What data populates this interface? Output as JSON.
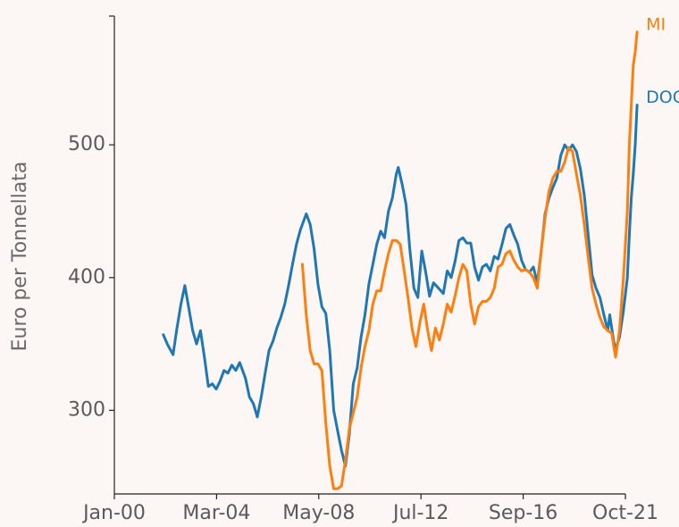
{
  "chart_data": {
    "type": "line",
    "title": "",
    "xlabel": "",
    "ylabel": "Euro per Tonnellata",
    "x_ticks": [
      "Jan-00",
      "Mar-04",
      "May-08",
      "Jul-12",
      "Sep-16",
      "Oct-21"
    ],
    "x_range": [
      "2000-01",
      "2021-10"
    ],
    "y_ticks": [
      300,
      400,
      500
    ],
    "ylim": [
      237,
      597
    ],
    "grid": false,
    "legend": "inline labels at line ends",
    "colors": {
      "MI": "#ff7f0e",
      "DOG": "#1f77b4"
    },
    "series": [
      {
        "name": "DOG",
        "color": "#1f77b4",
        "points": [
          [
            "2002-02",
            357
          ],
          [
            "2002-04",
            350
          ],
          [
            "2002-07",
            342
          ],
          [
            "2002-09",
            362
          ],
          [
            "2002-11",
            380
          ],
          [
            "2003-01",
            394
          ],
          [
            "2003-03",
            377
          ],
          [
            "2003-05",
            360
          ],
          [
            "2003-07",
            350
          ],
          [
            "2003-09",
            360
          ],
          [
            "2003-11",
            340
          ],
          [
            "2004-01",
            318
          ],
          [
            "2004-03",
            320
          ],
          [
            "2004-05",
            316
          ],
          [
            "2004-07",
            322
          ],
          [
            "2004-09",
            330
          ],
          [
            "2004-11",
            328
          ],
          [
            "2005-01",
            334
          ],
          [
            "2005-03",
            330
          ],
          [
            "2005-05",
            336
          ],
          [
            "2005-08",
            324
          ],
          [
            "2005-10",
            310
          ],
          [
            "2005-12",
            305
          ],
          [
            "2006-02",
            295
          ],
          [
            "2006-04",
            310
          ],
          [
            "2006-06",
            328
          ],
          [
            "2006-08",
            345
          ],
          [
            "2006-10",
            352
          ],
          [
            "2006-12",
            362
          ],
          [
            "2007-02",
            370
          ],
          [
            "2007-04",
            380
          ],
          [
            "2007-06",
            394
          ],
          [
            "2007-08",
            410
          ],
          [
            "2007-10",
            425
          ],
          [
            "2007-12",
            436
          ],
          [
            "2008-02",
            444
          ],
          [
            "2008-03",
            448
          ],
          [
            "2008-05",
            440
          ],
          [
            "2008-07",
            422
          ],
          [
            "2008-09",
            395
          ],
          [
            "2008-11",
            378
          ],
          [
            "2009-01",
            373
          ],
          [
            "2009-03",
            345
          ],
          [
            "2009-05",
            300
          ],
          [
            "2009-07",
            285
          ],
          [
            "2009-09",
            270
          ],
          [
            "2009-11",
            258
          ],
          [
            "2010-01",
            282
          ],
          [
            "2010-03",
            320
          ],
          [
            "2010-05",
            332
          ],
          [
            "2010-07",
            355
          ],
          [
            "2010-09",
            372
          ],
          [
            "2010-11",
            395
          ],
          [
            "2011-01",
            410
          ],
          [
            "2011-03",
            425
          ],
          [
            "2011-05",
            435
          ],
          [
            "2011-07",
            430
          ],
          [
            "2011-09",
            450
          ],
          [
            "2011-11",
            460
          ],
          [
            "2012-01",
            478
          ],
          [
            "2012-02",
            483
          ],
          [
            "2012-04",
            470
          ],
          [
            "2012-06",
            455
          ],
          [
            "2012-08",
            420
          ],
          [
            "2012-10",
            392
          ],
          [
            "2012-12",
            385
          ],
          [
            "2013-02",
            420
          ],
          [
            "2013-04",
            404
          ],
          [
            "2013-06",
            386
          ],
          [
            "2013-08",
            396
          ],
          [
            "2013-10",
            393
          ],
          [
            "2014-01",
            388
          ],
          [
            "2014-03",
            405
          ],
          [
            "2014-05",
            400
          ],
          [
            "2014-07",
            412
          ],
          [
            "2014-09",
            428
          ],
          [
            "2014-11",
            430
          ],
          [
            "2015-01",
            426
          ],
          [
            "2015-03",
            426
          ],
          [
            "2015-05",
            408
          ],
          [
            "2015-07",
            398
          ],
          [
            "2015-09",
            408
          ],
          [
            "2015-11",
            410
          ],
          [
            "2016-01",
            405
          ],
          [
            "2016-03",
            416
          ],
          [
            "2016-05",
            414
          ],
          [
            "2016-07",
            425
          ],
          [
            "2016-09",
            437
          ],
          [
            "2016-11",
            440
          ],
          [
            "2017-01",
            432
          ],
          [
            "2017-03",
            425
          ],
          [
            "2017-05",
            413
          ],
          [
            "2017-07",
            406
          ],
          [
            "2017-09",
            404
          ],
          [
            "2017-11",
            408
          ],
          [
            "2018-01",
            396
          ],
          [
            "2018-03",
            420
          ],
          [
            "2018-05",
            448
          ],
          [
            "2018-07",
            460
          ],
          [
            "2018-09",
            468
          ],
          [
            "2018-11",
            475
          ],
          [
            "2019-01",
            492
          ],
          [
            "2019-03",
            500
          ],
          [
            "2019-05",
            496
          ],
          [
            "2019-07",
            500
          ],
          [
            "2019-09",
            495
          ],
          [
            "2019-11",
            482
          ],
          [
            "2020-01",
            462
          ],
          [
            "2020-03",
            432
          ],
          [
            "2020-05",
            402
          ],
          [
            "2020-07",
            392
          ],
          [
            "2020-09",
            385
          ],
          [
            "2020-11",
            372
          ],
          [
            "2021-01",
            360
          ],
          [
            "2021-02",
            372
          ],
          [
            "2021-04",
            352
          ],
          [
            "2021-05",
            346
          ],
          [
            "2021-07",
            355
          ],
          [
            "2021-09",
            375
          ],
          [
            "2021-11",
            400
          ],
          [
            "2021-12",
            432
          ],
          [
            "2022-01",
            460
          ],
          [
            "2022-02",
            478
          ],
          [
            "2022-03",
            500
          ],
          [
            "2022-04",
            530
          ]
        ]
      },
      {
        "name": "MI",
        "color": "#ff7f0e",
        "points": [
          [
            "2008-01",
            410
          ],
          [
            "2008-03",
            372
          ],
          [
            "2008-05",
            345
          ],
          [
            "2008-07",
            335
          ],
          [
            "2008-09",
            335
          ],
          [
            "2008-11",
            330
          ],
          [
            "2009-01",
            290
          ],
          [
            "2009-03",
            258
          ],
          [
            "2009-05",
            241
          ],
          [
            "2009-07",
            241
          ],
          [
            "2009-09",
            243
          ],
          [
            "2009-11",
            262
          ],
          [
            "2010-01",
            286
          ],
          [
            "2010-03",
            298
          ],
          [
            "2010-05",
            310
          ],
          [
            "2010-07",
            332
          ],
          [
            "2010-09",
            348
          ],
          [
            "2010-11",
            360
          ],
          [
            "2011-01",
            380
          ],
          [
            "2011-03",
            390
          ],
          [
            "2011-05",
            390
          ],
          [
            "2011-07",
            405
          ],
          [
            "2011-09",
            418
          ],
          [
            "2011-11",
            428
          ],
          [
            "2012-01",
            428
          ],
          [
            "2012-03",
            425
          ],
          [
            "2012-05",
            405
          ],
          [
            "2012-07",
            385
          ],
          [
            "2012-09",
            362
          ],
          [
            "2012-11",
            348
          ],
          [
            "2013-01",
            366
          ],
          [
            "2013-03",
            380
          ],
          [
            "2013-05",
            360
          ],
          [
            "2013-07",
            345
          ],
          [
            "2013-09",
            362
          ],
          [
            "2013-11",
            353
          ],
          [
            "2014-01",
            365
          ],
          [
            "2014-03",
            380
          ],
          [
            "2014-05",
            374
          ],
          [
            "2014-07",
            386
          ],
          [
            "2014-09",
            400
          ],
          [
            "2014-11",
            410
          ],
          [
            "2015-01",
            405
          ],
          [
            "2015-03",
            380
          ],
          [
            "2015-05",
            365
          ],
          [
            "2015-07",
            378
          ],
          [
            "2015-09",
            382
          ],
          [
            "2015-11",
            382
          ],
          [
            "2016-01",
            385
          ],
          [
            "2016-03",
            392
          ],
          [
            "2016-05",
            408
          ],
          [
            "2016-07",
            410
          ],
          [
            "2016-09",
            418
          ],
          [
            "2016-11",
            420
          ],
          [
            "2017-01",
            413
          ],
          [
            "2017-03",
            408
          ],
          [
            "2017-05",
            405
          ],
          [
            "2017-07",
            406
          ],
          [
            "2017-09",
            404
          ],
          [
            "2017-11",
            400
          ],
          [
            "2018-01",
            392
          ],
          [
            "2018-03",
            420
          ],
          [
            "2018-05",
            445
          ],
          [
            "2018-07",
            465
          ],
          [
            "2018-09",
            475
          ],
          [
            "2018-11",
            480
          ],
          [
            "2019-01",
            480
          ],
          [
            "2019-03",
            487
          ],
          [
            "2019-05",
            498
          ],
          [
            "2019-07",
            495
          ],
          [
            "2019-09",
            478
          ],
          [
            "2019-11",
            462
          ],
          [
            "2020-01",
            440
          ],
          [
            "2020-03",
            415
          ],
          [
            "2020-05",
            392
          ],
          [
            "2020-07",
            380
          ],
          [
            "2020-09",
            370
          ],
          [
            "2020-11",
            363
          ],
          [
            "2021-01",
            360
          ],
          [
            "2021-03",
            358
          ],
          [
            "2021-05",
            340
          ],
          [
            "2021-07",
            360
          ],
          [
            "2021-09",
            400
          ],
          [
            "2021-11",
            450
          ],
          [
            "2021-12",
            500
          ],
          [
            "2022-01",
            530
          ],
          [
            "2022-02",
            560
          ],
          [
            "2022-03",
            570
          ],
          [
            "2022-04",
            585
          ]
        ]
      }
    ]
  }
}
